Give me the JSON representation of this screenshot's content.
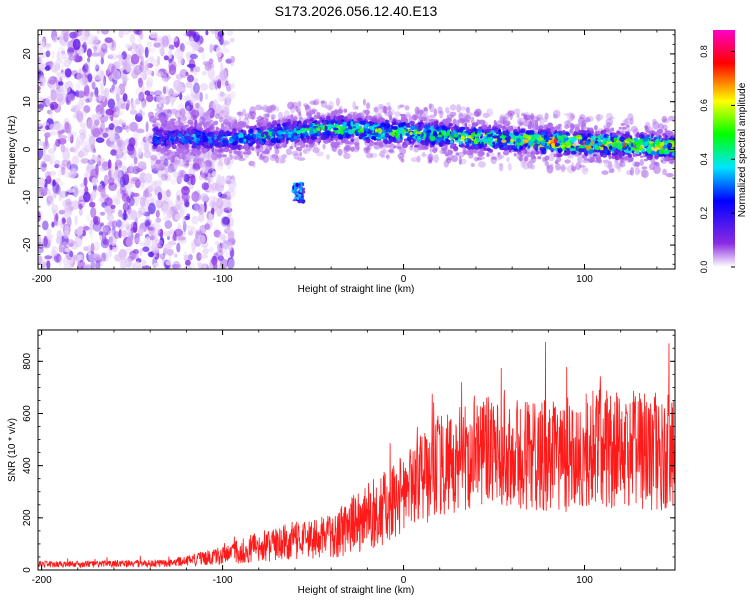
{
  "chart_data": [
    {
      "type": "heatmap",
      "title": "S173.2026.056.12.40.E13",
      "xlabel": "Height of straight line (km)",
      "ylabel": "Frequency (Hz)",
      "xlim": [
        -202,
        150
      ],
      "ylim": [
        -25,
        25
      ],
      "x_ticks": [
        -200,
        -100,
        0,
        100
      ],
      "y_ticks": [
        -20,
        -10,
        0,
        10,
        20
      ],
      "colorbar": {
        "label": "Normalized spectral amplitude",
        "range": [
          0,
          0.88
        ],
        "ticks": [
          "0.0",
          "0.2",
          "0.4",
          "0.6",
          "0.8"
        ],
        "colors": [
          "#ffffff",
          "#8a2be2",
          "#0000ff",
          "#00e5ff",
          "#00ff00",
          "#ffff00",
          "#ff0000",
          "#ff00c8"
        ]
      },
      "band": {
        "center_freq_hz": [
          {
            "x": -135,
            "f": 2.5
          },
          {
            "x": -100,
            "f": 2.0
          },
          {
            "x": -40,
            "f": 4.5
          },
          {
            "x": 0,
            "f": 3.5
          },
          {
            "x": 60,
            "f": 2.0
          },
          {
            "x": 150,
            "f": 0.5
          }
        ],
        "peak_amplitude": [
          {
            "x": -135,
            "a": 0.3
          },
          {
            "x": -100,
            "a": 0.35
          },
          {
            "x": -40,
            "a": 0.45
          },
          {
            "x": 0,
            "a": 0.5
          },
          {
            "x": 60,
            "a": 0.55
          },
          {
            "x": 90,
            "a": 0.7
          },
          {
            "x": 150,
            "a": 0.55
          }
        ]
      },
      "noise_region_x": [
        -202,
        -100
      ],
      "secondary_feature": {
        "x": -58,
        "f": -9,
        "amplitude": 0.35
      }
    },
    {
      "type": "line",
      "xlabel": "Height of straight line (km)",
      "ylabel": "SNR (10 * v/v)",
      "xlim": [
        -202,
        150
      ],
      "ylim": [
        0,
        920
      ],
      "x_ticks": [
        -200,
        -100,
        0,
        100
      ],
      "y_ticks": [
        0,
        200,
        400,
        600,
        800
      ],
      "line_color": "#ff1a1a",
      "series": [
        {
          "name": "SNR",
          "envelope": [
            {
              "x": -202,
              "mean": 22,
              "spread": 12
            },
            {
              "x": -130,
              "mean": 25,
              "spread": 15
            },
            {
              "x": -100,
              "mean": 55,
              "spread": 35
            },
            {
              "x": -80,
              "mean": 90,
              "spread": 60
            },
            {
              "x": -40,
              "mean": 130,
              "spread": 90
            },
            {
              "x": -20,
              "mean": 200,
              "spread": 130
            },
            {
              "x": 0,
              "mean": 280,
              "spread": 160
            },
            {
              "x": 20,
              "mean": 400,
              "spread": 200
            },
            {
              "x": 50,
              "mean": 460,
              "spread": 220
            },
            {
              "x": 80,
              "mean": 430,
              "spread": 220
            },
            {
              "x": 110,
              "mean": 470,
              "spread": 230
            },
            {
              "x": 150,
              "mean": 440,
              "spread": 230
            }
          ],
          "max_value": 920
        }
      ]
    }
  ]
}
